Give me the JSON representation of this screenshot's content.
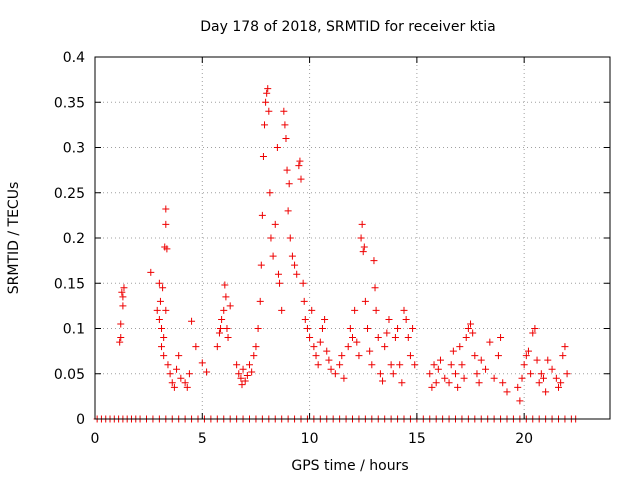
{
  "chart_data": {
    "type": "scatter",
    "title": "Day 178 of 2018, SRMTID for receiver ktia",
    "xlabel": "GPS time / hours",
    "ylabel": "SRMTID / TECUs",
    "xlim": [
      0,
      24
    ],
    "ylim": [
      0,
      0.4
    ],
    "grid": true,
    "x_ticks": [
      0,
      5,
      10,
      15,
      20
    ],
    "x_tick_labels": [
      "0",
      "5",
      "10",
      "15",
      "20"
    ],
    "y_ticks": [
      0,
      0.05,
      0.1,
      0.15,
      0.2,
      0.25,
      0.3,
      0.35,
      0.4
    ],
    "y_tick_labels": [
      "0",
      "0.05",
      "0.1",
      "0.15",
      "0.2",
      "0.25",
      "0.3",
      "0.35",
      "0.4"
    ],
    "marker": "+",
    "color": "#ee0000",
    "series": [
      {
        "name": "SRMTID",
        "points": [
          [
            0.1,
            0
          ],
          [
            0.3,
            0
          ],
          [
            0.5,
            0
          ],
          [
            0.7,
            0
          ],
          [
            0.9,
            0
          ],
          [
            1.1,
            0
          ],
          [
            1.3,
            0
          ],
          [
            1.5,
            0
          ],
          [
            1.7,
            0
          ],
          [
            1.9,
            0
          ],
          [
            2.1,
            0
          ],
          [
            2.4,
            0
          ],
          [
            2.7,
            0
          ],
          [
            3.0,
            0
          ],
          [
            3.3,
            0
          ],
          [
            3.6,
            0
          ],
          [
            3.9,
            0
          ],
          [
            4.2,
            0
          ],
          [
            4.5,
            0
          ],
          [
            4.8,
            0
          ],
          [
            5.1,
            0
          ],
          [
            5.4,
            0
          ],
          [
            5.7,
            0
          ],
          [
            6.0,
            0
          ],
          [
            6.3,
            0
          ],
          [
            6.6,
            0
          ],
          [
            6.9,
            0
          ],
          [
            7.2,
            0
          ],
          [
            7.5,
            0
          ],
          [
            7.8,
            0
          ],
          [
            8.1,
            0
          ],
          [
            8.4,
            0
          ],
          [
            8.7,
            0
          ],
          [
            9.0,
            0
          ],
          [
            9.3,
            0
          ],
          [
            9.6,
            0
          ],
          [
            9.9,
            0
          ],
          [
            10.2,
            0
          ],
          [
            10.5,
            0
          ],
          [
            10.8,
            0
          ],
          [
            11.1,
            0
          ],
          [
            11.4,
            0
          ],
          [
            11.7,
            0
          ],
          [
            12.0,
            0
          ],
          [
            12.3,
            0
          ],
          [
            12.6,
            0
          ],
          [
            12.9,
            0
          ],
          [
            13.2,
            0
          ],
          [
            13.5,
            0
          ],
          [
            13.8,
            0
          ],
          [
            14.1,
            0
          ],
          [
            14.4,
            0
          ],
          [
            14.7,
            0
          ],
          [
            15.0,
            0
          ],
          [
            15.3,
            0
          ],
          [
            15.6,
            0
          ],
          [
            15.9,
            0
          ],
          [
            16.2,
            0
          ],
          [
            16.5,
            0
          ],
          [
            16.8,
            0
          ],
          [
            17.1,
            0
          ],
          [
            17.4,
            0
          ],
          [
            17.7,
            0
          ],
          [
            18.0,
            0
          ],
          [
            18.3,
            0
          ],
          [
            18.6,
            0
          ],
          [
            18.9,
            0
          ],
          [
            19.2,
            0
          ],
          [
            19.5,
            0
          ],
          [
            19.8,
            0
          ],
          [
            20.1,
            0
          ],
          [
            20.4,
            0
          ],
          [
            20.7,
            0
          ],
          [
            21.0,
            0
          ],
          [
            21.3,
            0
          ],
          [
            21.6,
            0
          ],
          [
            21.9,
            0
          ],
          [
            22.2,
            0
          ],
          [
            22.4,
            0
          ],
          [
            1.15,
            0.085
          ],
          [
            1.2,
            0.09
          ],
          [
            1.2,
            0.105
          ],
          [
            1.25,
            0.14
          ],
          [
            1.3,
            0.135
          ],
          [
            1.3,
            0.125
          ],
          [
            1.35,
            0.145
          ],
          [
            2.6,
            0.162
          ],
          [
            2.9,
            0.12
          ],
          [
            3.0,
            0.11
          ],
          [
            3.0,
            0.15
          ],
          [
            3.05,
            0.13
          ],
          [
            3.1,
            0.08
          ],
          [
            3.1,
            0.1
          ],
          [
            3.15,
            0.145
          ],
          [
            3.2,
            0.07
          ],
          [
            3.2,
            0.09
          ],
          [
            3.25,
            0.19
          ],
          [
            3.3,
            0.215
          ],
          [
            3.3,
            0.232
          ],
          [
            3.3,
            0.12
          ],
          [
            3.35,
            0.188
          ],
          [
            3.4,
            0.06
          ],
          [
            3.5,
            0.05
          ],
          [
            3.6,
            0.04
          ],
          [
            3.7,
            0.035
          ],
          [
            3.8,
            0.055
          ],
          [
            3.9,
            0.07
          ],
          [
            4.0,
            0.045
          ],
          [
            4.2,
            0.04
          ],
          [
            4.3,
            0.035
          ],
          [
            4.4,
            0.05
          ],
          [
            4.5,
            0.108
          ],
          [
            4.7,
            0.08
          ],
          [
            5.0,
            0.062
          ],
          [
            5.2,
            0.052
          ],
          [
            5.7,
            0.08
          ],
          [
            5.8,
            0.095
          ],
          [
            5.85,
            0.1
          ],
          [
            5.9,
            0.11
          ],
          [
            6.0,
            0.12
          ],
          [
            6.05,
            0.148
          ],
          [
            6.1,
            0.135
          ],
          [
            6.15,
            0.1
          ],
          [
            6.2,
            0.09
          ],
          [
            6.3,
            0.125
          ],
          [
            6.6,
            0.06
          ],
          [
            6.7,
            0.05
          ],
          [
            6.8,
            0.045
          ],
          [
            6.85,
            0.038
          ],
          [
            6.9,
            0.055
          ],
          [
            7.0,
            0.042
          ],
          [
            7.1,
            0.048
          ],
          [
            7.2,
            0.06
          ],
          [
            7.3,
            0.052
          ],
          [
            7.4,
            0.07
          ],
          [
            7.5,
            0.08
          ],
          [
            7.6,
            0.1
          ],
          [
            7.7,
            0.13
          ],
          [
            7.75,
            0.17
          ],
          [
            7.8,
            0.225
          ],
          [
            7.85,
            0.29
          ],
          [
            7.9,
            0.325
          ],
          [
            7.95,
            0.35
          ],
          [
            8.0,
            0.36
          ],
          [
            8.05,
            0.365
          ],
          [
            8.1,
            0.34
          ],
          [
            8.15,
            0.25
          ],
          [
            8.2,
            0.2
          ],
          [
            8.3,
            0.18
          ],
          [
            8.4,
            0.215
          ],
          [
            8.5,
            0.3
          ],
          [
            8.55,
            0.16
          ],
          [
            8.6,
            0.15
          ],
          [
            8.7,
            0.12
          ],
          [
            8.8,
            0.34
          ],
          [
            8.85,
            0.325
          ],
          [
            8.9,
            0.31
          ],
          [
            8.95,
            0.275
          ],
          [
            9.0,
            0.23
          ],
          [
            9.05,
            0.26
          ],
          [
            9.1,
            0.2
          ],
          [
            9.2,
            0.18
          ],
          [
            9.3,
            0.17
          ],
          [
            9.4,
            0.16
          ],
          [
            9.5,
            0.28
          ],
          [
            9.55,
            0.285
          ],
          [
            9.6,
            0.265
          ],
          [
            9.7,
            0.15
          ],
          [
            9.75,
            0.13
          ],
          [
            9.8,
            0.11
          ],
          [
            9.9,
            0.1
          ],
          [
            10.0,
            0.09
          ],
          [
            10.1,
            0.12
          ],
          [
            10.2,
            0.08
          ],
          [
            10.3,
            0.07
          ],
          [
            10.4,
            0.06
          ],
          [
            10.5,
            0.085
          ],
          [
            10.6,
            0.1
          ],
          [
            10.7,
            0.11
          ],
          [
            10.8,
            0.075
          ],
          [
            10.9,
            0.065
          ],
          [
            11.0,
            0.055
          ],
          [
            11.2,
            0.05
          ],
          [
            11.4,
            0.06
          ],
          [
            11.5,
            0.07
          ],
          [
            11.6,
            0.045
          ],
          [
            11.8,
            0.08
          ],
          [
            11.9,
            0.1
          ],
          [
            12.0,
            0.09
          ],
          [
            12.1,
            0.12
          ],
          [
            12.2,
            0.085
          ],
          [
            12.3,
            0.07
          ],
          [
            12.4,
            0.2
          ],
          [
            12.45,
            0.215
          ],
          [
            12.5,
            0.185
          ],
          [
            12.55,
            0.19
          ],
          [
            12.6,
            0.13
          ],
          [
            12.7,
            0.1
          ],
          [
            12.8,
            0.075
          ],
          [
            12.9,
            0.06
          ],
          [
            13.0,
            0.175
          ],
          [
            13.05,
            0.145
          ],
          [
            13.1,
            0.12
          ],
          [
            13.2,
            0.09
          ],
          [
            13.3,
            0.05
          ],
          [
            13.4,
            0.042
          ],
          [
            13.5,
            0.08
          ],
          [
            13.6,
            0.095
          ],
          [
            13.7,
            0.11
          ],
          [
            13.8,
            0.06
          ],
          [
            13.9,
            0.05
          ],
          [
            14.0,
            0.09
          ],
          [
            14.1,
            0.1
          ],
          [
            14.2,
            0.06
          ],
          [
            14.3,
            0.04
          ],
          [
            14.4,
            0.12
          ],
          [
            14.5,
            0.11
          ],
          [
            14.6,
            0.09
          ],
          [
            14.7,
            0.07
          ],
          [
            14.8,
            0.1
          ],
          [
            14.9,
            0.06
          ],
          [
            15.6,
            0.05
          ],
          [
            15.7,
            0.035
          ],
          [
            15.8,
            0.06
          ],
          [
            15.9,
            0.04
          ],
          [
            16.0,
            0.055
          ],
          [
            16.1,
            0.065
          ],
          [
            16.3,
            0.045
          ],
          [
            16.5,
            0.04
          ],
          [
            16.6,
            0.06
          ],
          [
            16.7,
            0.075
          ],
          [
            16.8,
            0.05
          ],
          [
            16.9,
            0.035
          ],
          [
            17.0,
            0.08
          ],
          [
            17.1,
            0.06
          ],
          [
            17.2,
            0.045
          ],
          [
            17.3,
            0.09
          ],
          [
            17.4,
            0.1
          ],
          [
            17.5,
            0.105
          ],
          [
            17.6,
            0.095
          ],
          [
            17.7,
            0.07
          ],
          [
            17.8,
            0.05
          ],
          [
            17.9,
            0.04
          ],
          [
            18.0,
            0.065
          ],
          [
            18.2,
            0.055
          ],
          [
            18.4,
            0.085
          ],
          [
            18.6,
            0.045
          ],
          [
            18.8,
            0.07
          ],
          [
            18.9,
            0.09
          ],
          [
            19.0,
            0.04
          ],
          [
            19.2,
            0.03
          ],
          [
            19.7,
            0.035
          ],
          [
            19.8,
            0.02
          ],
          [
            19.9,
            0.045
          ],
          [
            20.0,
            0.06
          ],
          [
            20.1,
            0.07
          ],
          [
            20.2,
            0.075
          ],
          [
            20.3,
            0.05
          ],
          [
            20.4,
            0.095
          ],
          [
            20.5,
            0.1
          ],
          [
            20.6,
            0.065
          ],
          [
            20.7,
            0.04
          ],
          [
            20.8,
            0.05
          ],
          [
            20.9,
            0.045
          ],
          [
            21.0,
            0.03
          ],
          [
            21.1,
            0.065
          ],
          [
            21.3,
            0.055
          ],
          [
            21.5,
            0.045
          ],
          [
            21.6,
            0.035
          ],
          [
            21.7,
            0.04
          ],
          [
            21.8,
            0.07
          ],
          [
            21.9,
            0.08
          ],
          [
            22.0,
            0.05
          ]
        ]
      }
    ]
  }
}
